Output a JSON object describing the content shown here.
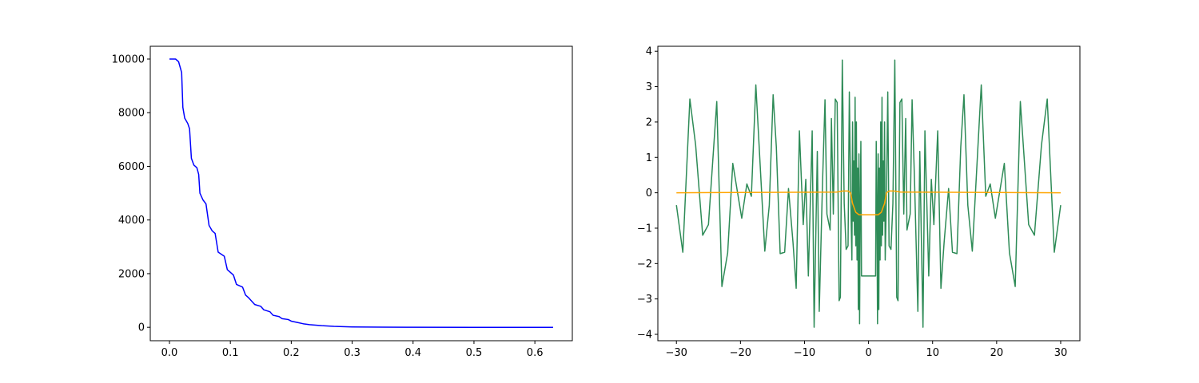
{
  "chart_data": [
    {
      "type": "line",
      "xlim": [
        -0.0315,
        0.6615
      ],
      "ylim": [
        -500,
        10476
      ],
      "xticks": [
        {
          "value": 0,
          "label": "0.0"
        },
        0.1,
        0.2,
        0.3,
        0.4,
        0.5,
        0.6
      ],
      "yticks": [
        0,
        2000,
        4000,
        6000,
        8000,
        10000
      ],
      "series": [
        {
          "color": "#0000ff",
          "x": [
            0,
            0.01,
            0.015,
            0.02,
            0.022,
            0.025,
            0.03,
            0.033,
            0.036,
            0.04,
            0.045,
            0.048,
            0.05,
            0.055,
            0.06,
            0.065,
            0.07,
            0.075,
            0.08,
            0.09,
            0.095,
            0.1,
            0.105,
            0.11,
            0.12,
            0.125,
            0.13,
            0.14,
            0.15,
            0.155,
            0.165,
            0.17,
            0.18,
            0.185,
            0.195,
            0.2,
            0.21,
            0.22,
            0.23,
            0.25,
            0.27,
            0.3,
            0.35,
            0.4,
            0.5,
            0.63
          ],
          "values": [
            10000,
            10000,
            9900,
            9500,
            8200,
            7800,
            7600,
            7400,
            6300,
            6050,
            5950,
            5700,
            5000,
            4750,
            4600,
            3800,
            3600,
            3500,
            2800,
            2650,
            2150,
            2050,
            1950,
            1600,
            1500,
            1200,
            1100,
            850,
            780,
            650,
            580,
            450,
            400,
            320,
            290,
            230,
            180,
            130,
            100,
            60,
            35,
            15,
            5,
            2,
            0,
            0
          ]
        }
      ]
    },
    {
      "type": "line",
      "xlim": [
        -32.9,
        33
      ],
      "ylim": [
        -4.18,
        4.14
      ],
      "xticks": [
        {
          "value": -30,
          "label": "−30"
        },
        {
          "value": -20,
          "label": "−20"
        },
        {
          "value": -10,
          "label": "−10"
        },
        0,
        10,
        20,
        30
      ],
      "yticks": [
        {
          "value": -4,
          "label": "−4"
        },
        {
          "value": -3,
          "label": "−3"
        },
        {
          "value": -2,
          "label": "−2"
        },
        {
          "value": -1,
          "label": "−1"
        },
        0,
        1,
        2,
        3,
        4
      ],
      "series": [
        {
          "color": "#2e8b57",
          "x": [
            -30,
            -29,
            -27.9,
            -27,
            -25.9,
            -25,
            -23.7,
            -22.9,
            -22,
            -21.2,
            -19.8,
            -19,
            -18.3,
            -17.6,
            -16.2,
            -15.5,
            -14.9,
            -14.4,
            -13.8,
            -13.1,
            -12.5,
            -11.8,
            -11.3,
            -10.8,
            -10.2,
            -9.8,
            -9.4,
            -8.8,
            -8.5,
            -8,
            -7.7,
            -7.2,
            -6.8,
            -6.5,
            -6,
            -5.8,
            -5.5,
            -5.2,
            -4.9,
            -4.6,
            -4.4,
            -4.1,
            -3.8,
            -3.5,
            -3.2,
            -3,
            -2.8,
            -2.6,
            -2.5,
            -2.4,
            -2.3,
            -2.2,
            -2.1,
            -2,
            -1.9,
            -1.8,
            -1.7,
            -1.6,
            -1.5,
            -1.4,
            -1.3,
            -1.2,
            -1.1,
            1.1,
            1.2,
            1.3,
            1.4,
            1.5,
            1.6,
            1.7,
            1.8,
            1.9,
            2,
            2.1,
            2.2,
            2.3,
            2.4,
            2.5,
            2.6,
            2.8,
            3,
            3.2,
            3.5,
            3.8,
            4.1,
            4.4,
            4.6,
            4.9,
            5.2,
            5.5,
            5.8,
            6,
            6.5,
            6.8,
            7.2,
            7.7,
            8,
            8.5,
            8.8,
            9.4,
            9.8,
            10.2,
            10.8,
            11.3,
            11.8,
            12.5,
            13.1,
            13.8,
            14.4,
            14.9,
            15.5,
            16.2,
            17.6,
            18.3,
            19,
            19.8,
            21.2,
            22,
            22.9,
            23.7,
            25,
            25.9,
            27,
            27.9,
            29,
            30
          ],
          "values": [
            -0.35,
            -1.68,
            2.65,
            1.35,
            -1.2,
            -0.9,
            2.58,
            -2.65,
            -1.7,
            0.83,
            -0.72,
            0.25,
            -0.1,
            3.05,
            -1.65,
            -0.35,
            2.77,
            1.3,
            -1.72,
            -1.68,
            0.12,
            -1.4,
            -2.7,
            1.75,
            -0.9,
            0.38,
            -2.35,
            1.75,
            -3.8,
            1.17,
            -3.35,
            0.2,
            2.63,
            -0.6,
            -1.05,
            2.1,
            -0.6,
            2.65,
            2.55,
            -3.05,
            -2.95,
            3.75,
            -0.3,
            -1.6,
            -1.5,
            2.85,
            0,
            -1.9,
            2,
            -0.8,
            0.9,
            -1.2,
            2.7,
            -1.5,
            2,
            -1.9,
            0.7,
            -3.3,
            1.1,
            -3.7,
            -0.3,
            1.45,
            -2.35,
            -2.35,
            1.45,
            -0.3,
            -3.7,
            1.1,
            -3.3,
            0.7,
            -1.9,
            2,
            -1.5,
            2.7,
            -1.2,
            0.9,
            -0.8,
            2,
            -1.9,
            0,
            2.85,
            -1.5,
            -1.6,
            -0.3,
            3.75,
            -2.95,
            -3.05,
            2.55,
            2.65,
            -0.6,
            2.1,
            -1.05,
            -0.6,
            2.63,
            0.2,
            -3.35,
            1.17,
            -3.8,
            1.75,
            -2.35,
            0.38,
            -0.9,
            1.75,
            -2.7,
            -1.4,
            0.12,
            -1.68,
            -1.72,
            1.3,
            2.77,
            -0.35,
            -1.65,
            3.05,
            -0.1,
            0.25,
            -0.72,
            0.83,
            -1.7,
            -2.65,
            2.58,
            -0.9,
            -1.2,
            1.35,
            2.65,
            -1.68,
            -0.35
          ]
        },
        {
          "color": "#ffa500",
          "x": [
            -30,
            -5,
            -4,
            -3.2,
            -2.8,
            -2.5,
            -2,
            -1.5,
            1.5,
            2,
            2.5,
            2.8,
            3.2,
            4,
            5,
            30
          ],
          "values": [
            0,
            0.02,
            0.05,
            0.05,
            0,
            -0.3,
            -0.55,
            -0.62,
            -0.62,
            -0.55,
            -0.3,
            0,
            0.05,
            0.05,
            0.02,
            0
          ]
        }
      ]
    }
  ]
}
